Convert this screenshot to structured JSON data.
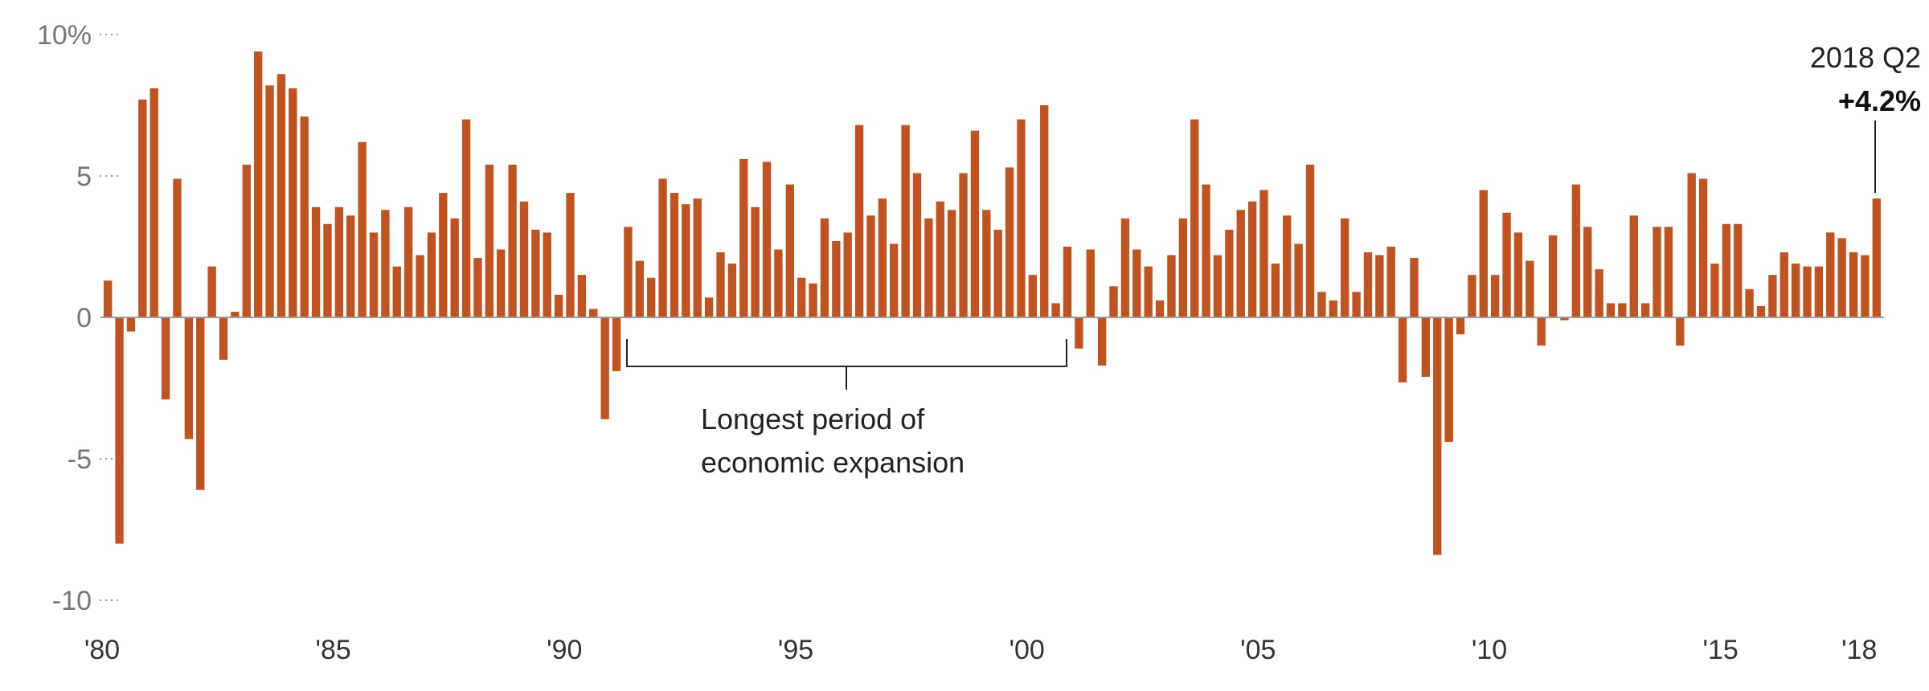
{
  "chart_data": {
    "type": "bar",
    "title": "",
    "xlabel": "",
    "ylabel": "",
    "ylim": [
      -10,
      10
    ],
    "y_ticks": [
      {
        "value": 10,
        "label": "10%"
      },
      {
        "value": 5,
        "label": "5"
      },
      {
        "value": 0,
        "label": "0"
      },
      {
        "value": -5,
        "label": "-5"
      },
      {
        "value": -10,
        "label": "-10"
      }
    ],
    "x_ticks": [
      {
        "year": 1980,
        "label": "'80"
      },
      {
        "year": 1985,
        "label": "'85"
      },
      {
        "year": 1990,
        "label": "'90"
      },
      {
        "year": 1995,
        "label": "'95"
      },
      {
        "year": 2000,
        "label": "'00"
      },
      {
        "year": 2005,
        "label": "'05"
      },
      {
        "year": 2010,
        "label": "'10"
      },
      {
        "year": 2015,
        "label": "'15"
      },
      {
        "year": 2018,
        "label": "'18"
      }
    ],
    "start": "1980 Q1",
    "end": "2018 Q2",
    "bar_color": "#c0531f",
    "values": [
      1.3,
      -8.0,
      -0.5,
      7.7,
      8.1,
      -2.9,
      4.9,
      -4.3,
      -6.1,
      1.8,
      -1.5,
      0.2,
      5.4,
      9.4,
      8.2,
      8.6,
      8.1,
      7.1,
      3.9,
      3.3,
      3.9,
      3.6,
      6.2,
      3.0,
      3.8,
      1.8,
      3.9,
      2.2,
      3.0,
      4.4,
      3.5,
      7.0,
      2.1,
      5.4,
      2.4,
      5.4,
      4.1,
      3.1,
      3.0,
      0.8,
      4.4,
      1.5,
      0.3,
      -3.6,
      -1.9,
      3.2,
      2.0,
      1.4,
      4.9,
      4.4,
      4.0,
      4.2,
      0.7,
      2.3,
      1.9,
      5.6,
      3.9,
      5.5,
      2.4,
      4.7,
      1.4,
      1.2,
      3.5,
      2.7,
      3.0,
      6.8,
      3.6,
      4.2,
      2.6,
      6.8,
      5.1,
      3.5,
      4.1,
      3.8,
      5.1,
      6.6,
      3.8,
      3.1,
      5.3,
      7.0,
      1.5,
      7.5,
      0.5,
      2.5,
      -1.1,
      2.4,
      -1.7,
      1.1,
      3.5,
      2.4,
      1.8,
      0.6,
      2.2,
      3.5,
      7.0,
      4.7,
      2.2,
      3.1,
      3.8,
      4.1,
      4.5,
      1.9,
      3.6,
      2.6,
      5.4,
      0.9,
      0.6,
      3.5,
      0.9,
      2.3,
      2.2,
      2.5,
      -2.3,
      2.1,
      -2.1,
      -8.4,
      -4.4,
      -0.6,
      1.5,
      4.5,
      1.5,
      3.7,
      3.0,
      2.0,
      -1.0,
      2.9,
      -0.1,
      4.7,
      3.2,
      1.7,
      0.5,
      0.5,
      3.6,
      0.5,
      3.2,
      3.2,
      -1.0,
      5.1,
      4.9,
      1.9,
      3.3,
      3.3,
      1.0,
      0.4,
      1.5,
      2.3,
      1.9,
      1.8,
      1.8,
      3.0,
      2.8,
      2.3,
      2.2,
      4.2
    ],
    "annotations": {
      "expansion_line1": "Longest period of",
      "expansion_line2": "economic expansion",
      "latest_label": "2018 Q2",
      "latest_value": "+4.2%"
    }
  }
}
